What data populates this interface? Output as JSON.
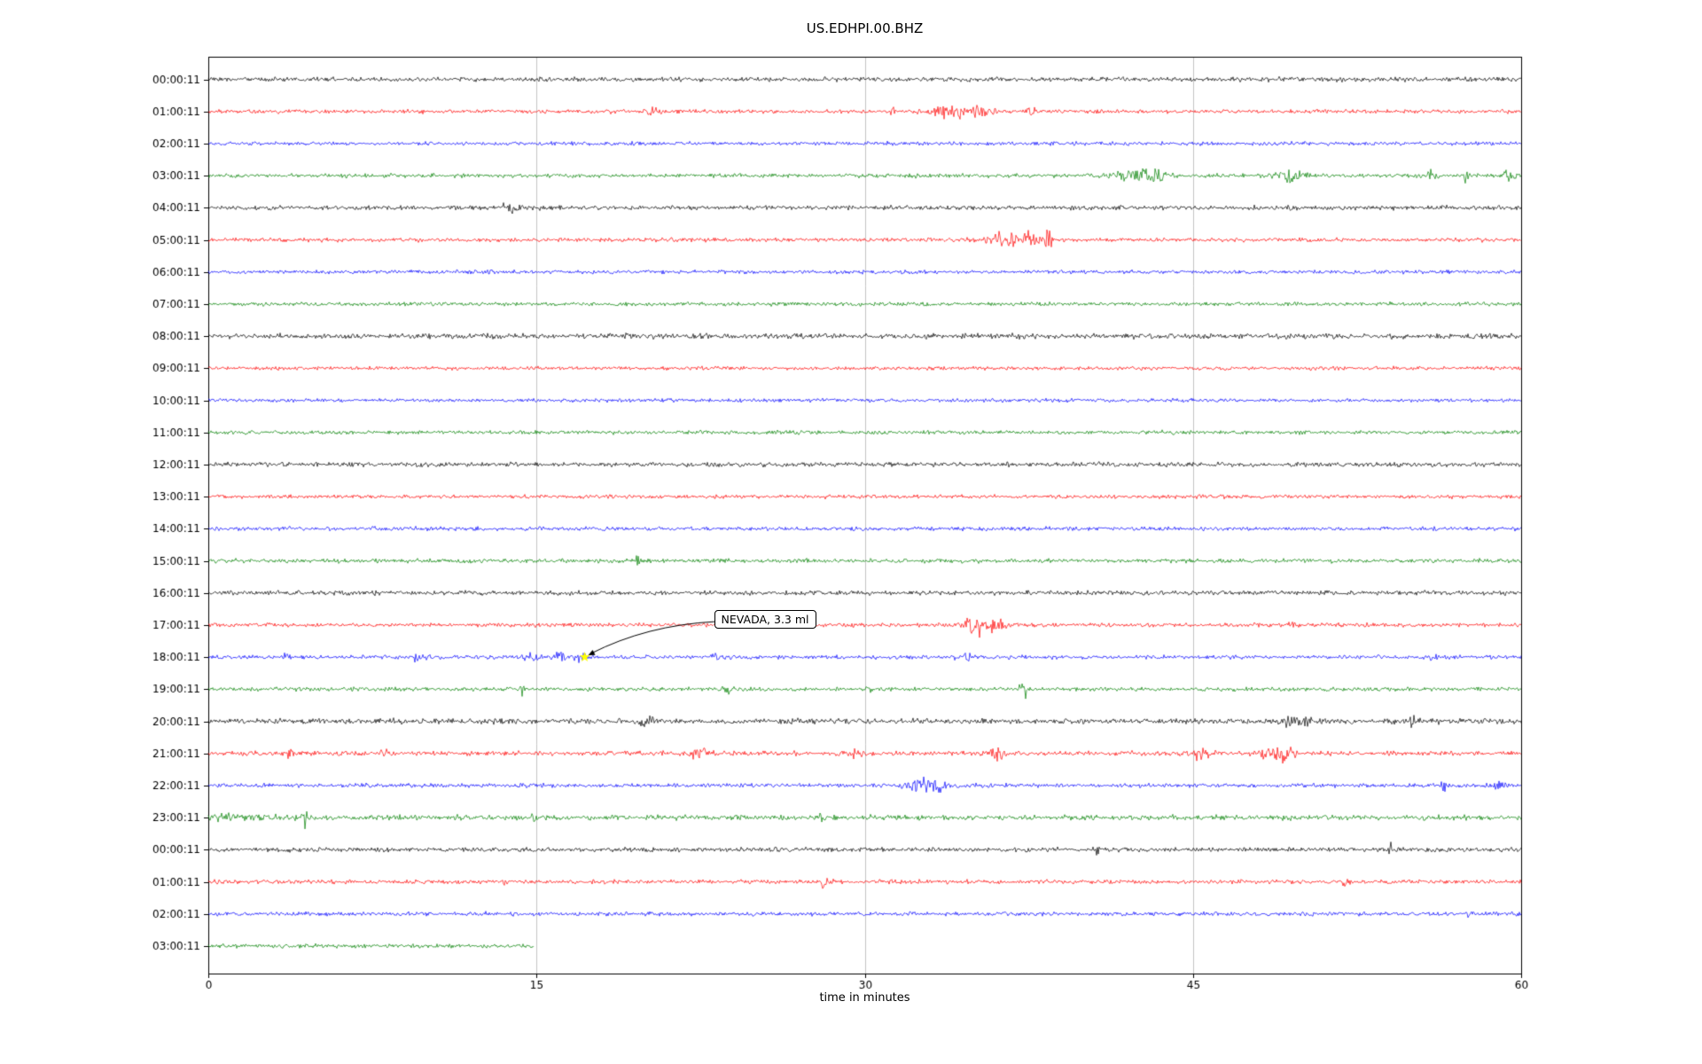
{
  "chart_data": {
    "type": "line",
    "title": "US.EDHPI.00.BHZ",
    "xlabel": "time in minutes",
    "xlim": [
      0,
      60
    ],
    "xticks": [
      0,
      15,
      30,
      45,
      60
    ],
    "gridlines_min": [
      15,
      30,
      45
    ],
    "grid_color": "#b5b5b5",
    "palette": {
      "black": "#000000",
      "red": "#ff0000",
      "blue": "#0000ff",
      "green": "#008000"
    },
    "annotation": {
      "label": "NEVADA, 3.3 ml",
      "row_index": 18,
      "time_min": 17.2,
      "marker": "star",
      "marker_color": "#ffff00"
    },
    "rows": [
      {
        "label": "00:00:11",
        "color": "black",
        "amp": 1.15
      },
      {
        "label": "01:00:11",
        "color": "red",
        "amp": 1.0
      },
      {
        "label": "02:00:11",
        "color": "blue",
        "amp": 0.95
      },
      {
        "label": "03:00:11",
        "color": "green",
        "amp": 1.0
      },
      {
        "label": "04:00:11",
        "color": "black",
        "amp": 1.1
      },
      {
        "label": "05:00:11",
        "color": "red",
        "amp": 1.0
      },
      {
        "label": "06:00:11",
        "color": "blue",
        "amp": 0.95
      },
      {
        "label": "07:00:11",
        "color": "green",
        "amp": 0.95
      },
      {
        "label": "08:00:11",
        "color": "black",
        "amp": 1.3
      },
      {
        "label": "09:00:11",
        "color": "red",
        "amp": 0.9
      },
      {
        "label": "10:00:11",
        "color": "blue",
        "amp": 0.9
      },
      {
        "label": "11:00:11",
        "color": "green",
        "amp": 0.95
      },
      {
        "label": "12:00:11",
        "color": "black",
        "amp": 1.15
      },
      {
        "label": "13:00:11",
        "color": "red",
        "amp": 0.95
      },
      {
        "label": "14:00:11",
        "color": "blue",
        "amp": 1.0
      },
      {
        "label": "15:00:11",
        "color": "green",
        "amp": 1.05
      },
      {
        "label": "16:00:11",
        "color": "black",
        "amp": 1.1
      },
      {
        "label": "17:00:11",
        "color": "red",
        "amp": 1.0
      },
      {
        "label": "18:00:11",
        "color": "blue",
        "amp": 1.0
      },
      {
        "label": "19:00:11",
        "color": "green",
        "amp": 1.0
      },
      {
        "label": "20:00:11",
        "color": "black",
        "amp": 1.35
      },
      {
        "label": "21:00:11",
        "color": "red",
        "amp": 1.15
      },
      {
        "label": "22:00:11",
        "color": "blue",
        "amp": 1.05
      },
      {
        "label": "23:00:11",
        "color": "green",
        "amp": 1.3
      },
      {
        "label": "00:00:11",
        "color": "black",
        "amp": 1.1
      },
      {
        "label": "01:00:11",
        "color": "red",
        "amp": 1.0
      },
      {
        "label": "02:00:11",
        "color": "blue",
        "amp": 1.0
      },
      {
        "label": "03:00:11",
        "color": "green",
        "amp": 1.0,
        "end_min": 14.9
      }
    ],
    "events": [
      {
        "row": 1,
        "time": 20.3,
        "width": 0.3,
        "amp": 2.5
      },
      {
        "row": 1,
        "time": 31.4,
        "width": 0.2,
        "amp": 2.0
      },
      {
        "row": 1,
        "time": 33.8,
        "width": 0.8,
        "amp": 3.5
      },
      {
        "row": 1,
        "time": 35.3,
        "width": 0.5,
        "amp": 3.0
      },
      {
        "row": 1,
        "time": 37.6,
        "width": 0.25,
        "amp": 3.0
      },
      {
        "row": 3,
        "time": 42.3,
        "width": 0.8,
        "amp": 3.0
      },
      {
        "row": 3,
        "time": 43.3,
        "width": 0.5,
        "amp": 3.5
      },
      {
        "row": 3,
        "time": 49.5,
        "width": 0.6,
        "amp": 3.5
      },
      {
        "row": 3,
        "time": 55.8,
        "width": 0.4,
        "amp": 2.0
      },
      {
        "row": 3,
        "time": 57.5,
        "width": 0.15,
        "amp": 4.0
      },
      {
        "row": 3,
        "time": 59.3,
        "width": 0.3,
        "amp": 2.5
      },
      {
        "row": 4,
        "time": 13.8,
        "width": 0.5,
        "amp": 1.5
      },
      {
        "row": 5,
        "time": 36.3,
        "width": 0.9,
        "amp": 3.5
      },
      {
        "row": 5,
        "time": 37.5,
        "width": 0.4,
        "amp": 3.0
      },
      {
        "row": 5,
        "time": 38.4,
        "width": 0.15,
        "amp": 12.0
      },
      {
        "row": 15,
        "time": 19.6,
        "width": 0.1,
        "amp": 2.5
      },
      {
        "row": 17,
        "time": 34.9,
        "width": 0.5,
        "amp": 4.0
      },
      {
        "row": 17,
        "time": 35.8,
        "width": 0.7,
        "amp": 3.5
      },
      {
        "row": 17,
        "time": 49.6,
        "width": 0.2,
        "amp": 2.5
      },
      {
        "row": 18,
        "time": 3.6,
        "width": 0.15,
        "amp": 3.0
      },
      {
        "row": 18,
        "time": 9.7,
        "width": 0.3,
        "amp": 2.0
      },
      {
        "row": 18,
        "time": 12.0,
        "width": 0.2,
        "amp": 2.0
      },
      {
        "row": 18,
        "time": 14.8,
        "width": 0.4,
        "amp": 2.5
      },
      {
        "row": 18,
        "time": 16.1,
        "width": 0.3,
        "amp": 2.5
      },
      {
        "row": 18,
        "time": 17.0,
        "width": 0.25,
        "amp": 2.5
      },
      {
        "row": 18,
        "time": 23.2,
        "width": 0.2,
        "amp": 2.0
      },
      {
        "row": 18,
        "time": 34.5,
        "width": 0.3,
        "amp": 2.5
      },
      {
        "row": 18,
        "time": 56.0,
        "width": 0.15,
        "amp": 2.0
      },
      {
        "row": 19,
        "time": 14.4,
        "width": 0.1,
        "amp": 4.0
      },
      {
        "row": 19,
        "time": 23.8,
        "width": 0.3,
        "amp": 2.0
      },
      {
        "row": 19,
        "time": 30.2,
        "width": 0.15,
        "amp": 2.0
      },
      {
        "row": 19,
        "time": 37.3,
        "width": 0.25,
        "amp": 3.5
      },
      {
        "row": 20,
        "time": 20.0,
        "width": 0.3,
        "amp": 1.5
      },
      {
        "row": 20,
        "time": 49.7,
        "width": 0.6,
        "amp": 2.0
      },
      {
        "row": 20,
        "time": 55.0,
        "width": 0.2,
        "amp": 1.5
      },
      {
        "row": 21,
        "time": 3.7,
        "width": 0.2,
        "amp": 2.5
      },
      {
        "row": 21,
        "time": 8.0,
        "width": 0.2,
        "amp": 2.0
      },
      {
        "row": 21,
        "time": 22.4,
        "width": 0.5,
        "amp": 2.0
      },
      {
        "row": 21,
        "time": 29.6,
        "width": 0.2,
        "amp": 2.0
      },
      {
        "row": 21,
        "time": 36.1,
        "width": 0.25,
        "amp": 4.5
      },
      {
        "row": 21,
        "time": 45.3,
        "width": 0.5,
        "amp": 2.5
      },
      {
        "row": 21,
        "time": 48.6,
        "width": 0.6,
        "amp": 2.5
      },
      {
        "row": 21,
        "time": 49.3,
        "width": 0.3,
        "amp": 2.5
      },
      {
        "row": 22,
        "time": 32.6,
        "width": 0.7,
        "amp": 3.0
      },
      {
        "row": 22,
        "time": 33.4,
        "width": 0.3,
        "amp": 3.5
      },
      {
        "row": 22,
        "time": 56.5,
        "width": 0.12,
        "amp": 4.0
      },
      {
        "row": 22,
        "time": 58.8,
        "width": 0.4,
        "amp": 2.0
      },
      {
        "row": 23,
        "time": 1.5,
        "width": 1.5,
        "amp": 1.2
      },
      {
        "row": 23,
        "time": 4.4,
        "width": 0.1,
        "amp": 3.5
      },
      {
        "row": 23,
        "time": 15.0,
        "width": 0.2,
        "amp": 1.5
      },
      {
        "row": 23,
        "time": 28.0,
        "width": 0.2,
        "amp": 1.5
      },
      {
        "row": 24,
        "time": 40.6,
        "width": 0.1,
        "amp": 3.0
      },
      {
        "row": 24,
        "time": 54.0,
        "width": 0.1,
        "amp": 2.5
      },
      {
        "row": 25,
        "time": 13.6,
        "width": 0.1,
        "amp": 3.0
      },
      {
        "row": 25,
        "time": 28.2,
        "width": 0.3,
        "amp": 2.5
      },
      {
        "row": 25,
        "time": 52.0,
        "width": 0.2,
        "amp": 1.5
      },
      {
        "row": 26,
        "time": 57.6,
        "width": 0.15,
        "amp": 2.0
      }
    ]
  }
}
